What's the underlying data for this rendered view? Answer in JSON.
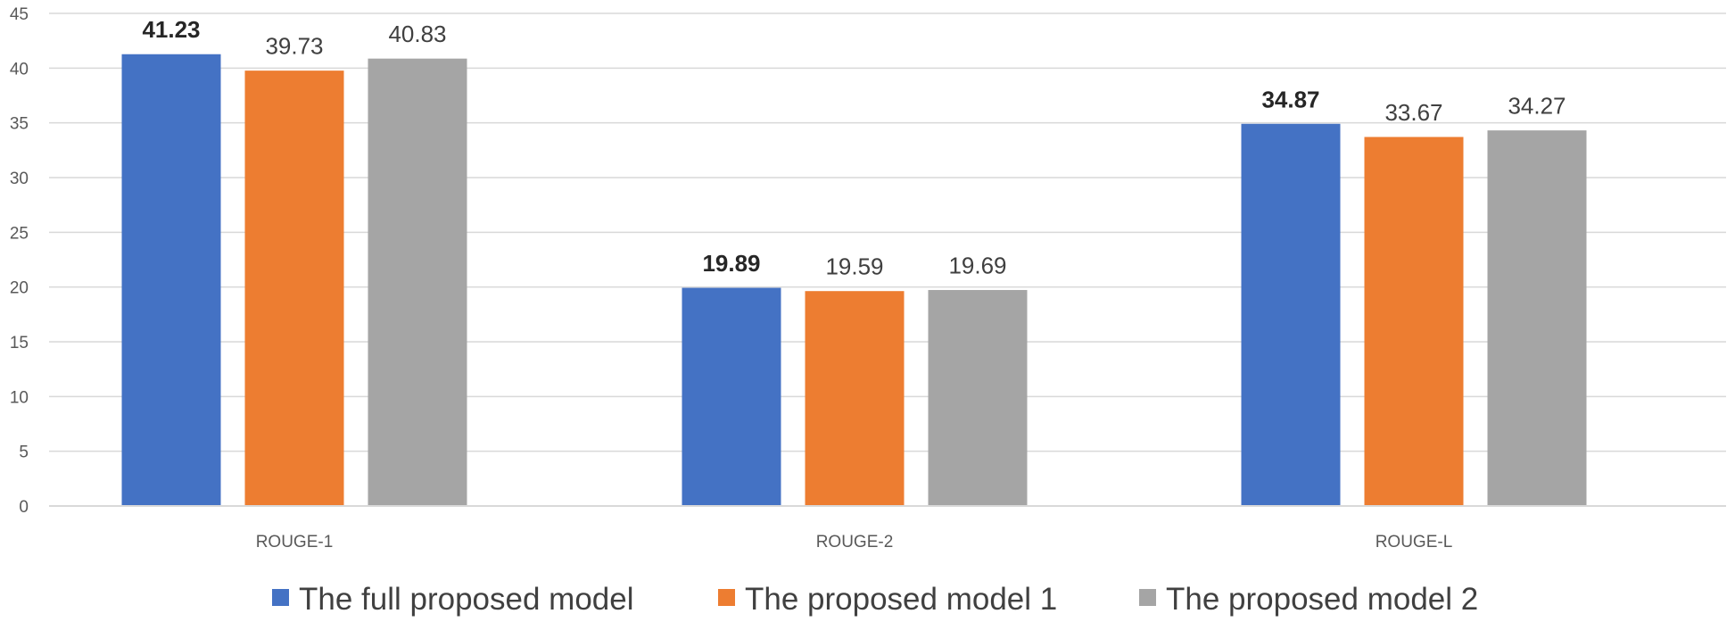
{
  "chart_data": {
    "type": "bar",
    "categories": [
      "ROUGE-1",
      "ROUGE-2",
      "ROUGE-L"
    ],
    "series": [
      {
        "name": "The full proposed model",
        "color": "#4472C4",
        "values": [
          41.23,
          19.89,
          34.87
        ],
        "label_bold": true
      },
      {
        "name": "The proposed model 1",
        "color": "#ED7D31",
        "values": [
          39.73,
          19.59,
          33.67
        ],
        "label_bold": false
      },
      {
        "name": "The proposed model 2",
        "color": "#A5A5A5",
        "values": [
          40.83,
          19.69,
          34.27
        ],
        "label_bold": false
      }
    ],
    "data_labels": [
      [
        "41.23",
        "19.89",
        "34.87"
      ],
      [
        "39.73",
        "19.59",
        "33.67"
      ],
      [
        "40.83",
        "19.69",
        "34.27"
      ]
    ],
    "yticks": [
      "0",
      "5",
      "10",
      "15",
      "20",
      "25",
      "30",
      "35",
      "40",
      "45"
    ],
    "ylim": [
      0,
      45
    ],
    "title": "",
    "xlabel": "",
    "ylabel": "",
    "grid": true,
    "legend_position": "bottom"
  }
}
